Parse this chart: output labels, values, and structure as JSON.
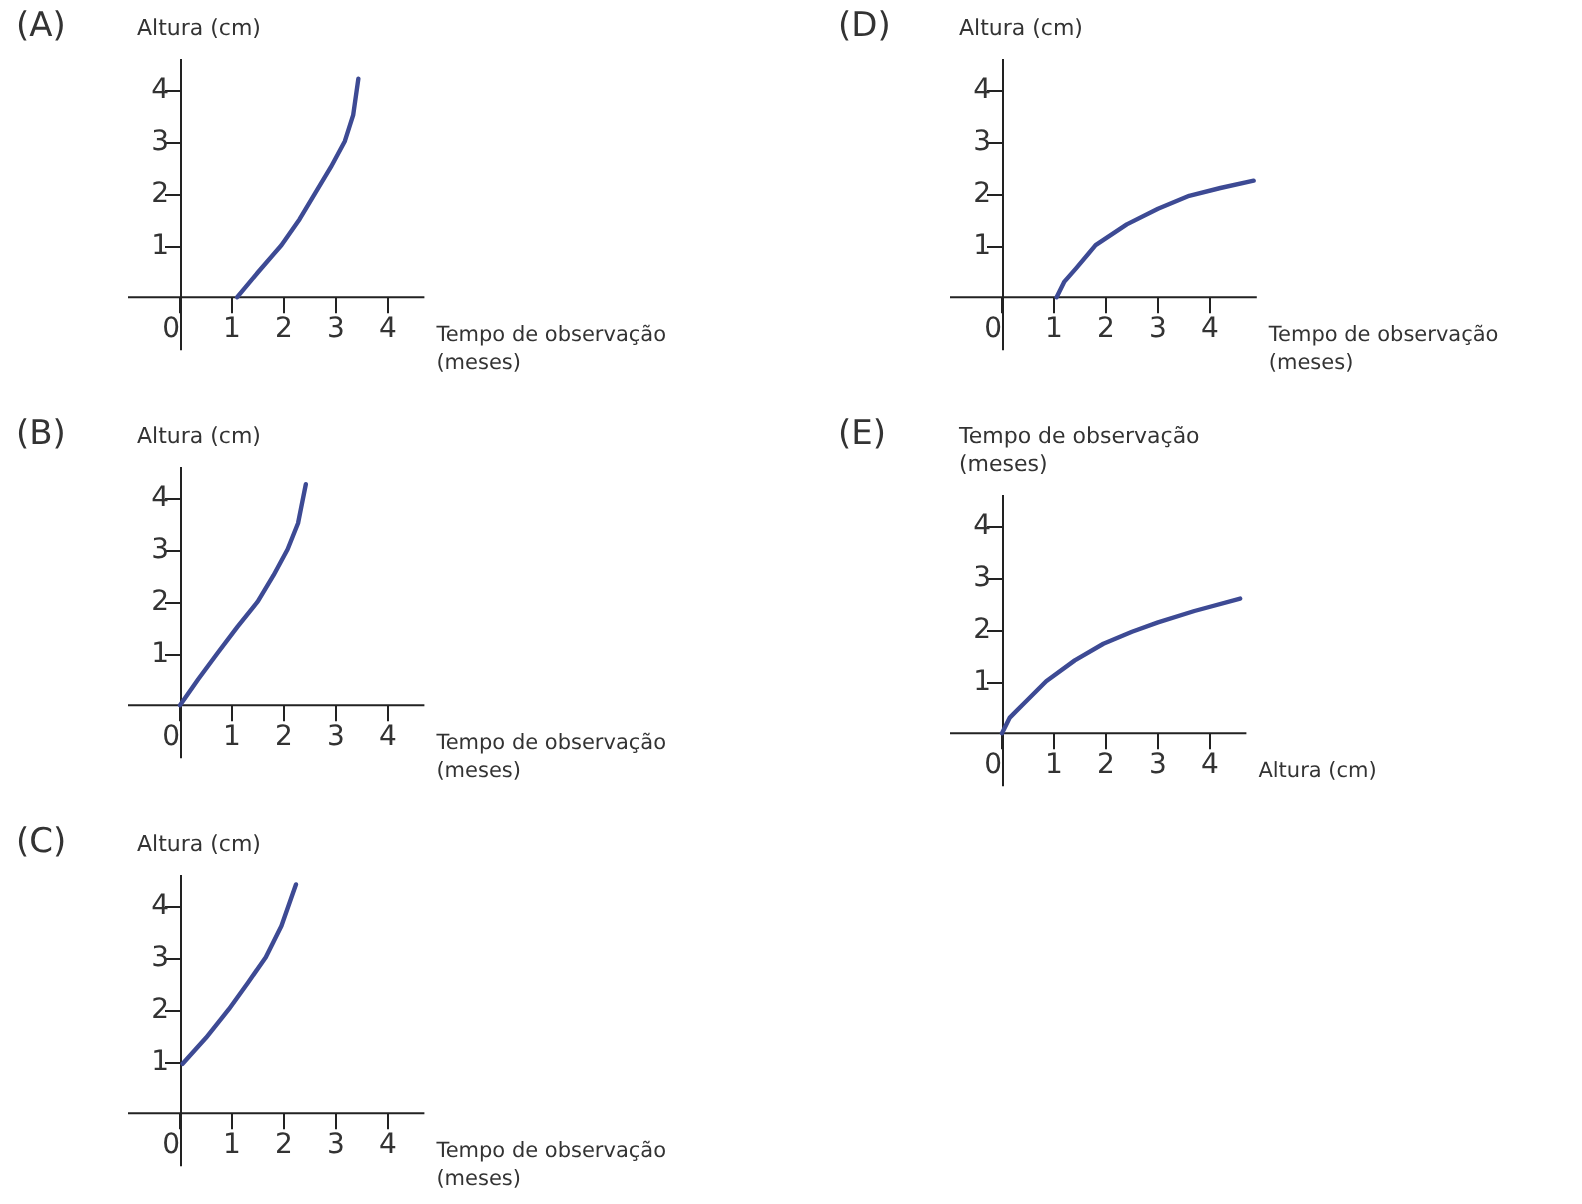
{
  "chart_data": [
    {
      "type": "line",
      "title": "(A)",
      "xlabel": "Tempo de observação (meses)",
      "ylabel": "Altura (cm)",
      "xlim": [
        -1,
        4.7
      ],
      "ylim": [
        -1,
        4.6
      ],
      "xticks": [
        0,
        1,
        2,
        3,
        4
      ],
      "yticks": [
        1,
        2,
        3,
        4
      ],
      "x": [
        1.1,
        1.5,
        1.95,
        2.3,
        2.6,
        2.9,
        3.17,
        3.33,
        3.43
      ],
      "series": [
        {
          "color": "#3d4a94",
          "values": [
            0,
            0.48,
            1,
            1.5,
            2,
            2.5,
            3,
            3.5,
            4.2
          ]
        }
      ]
    },
    {
      "type": "line",
      "title": "(B)",
      "xlabel": "Tempo de observação (meses)",
      "ylabel": "Altura (cm)",
      "xlim": [
        -1,
        4.7
      ],
      "ylim": [
        -1,
        4.6
      ],
      "xticks": [
        0,
        1,
        2,
        3,
        4
      ],
      "yticks": [
        1,
        2,
        3,
        4
      ],
      "x": [
        0,
        0.35,
        0.72,
        1.1,
        1.5,
        1.8,
        2.07,
        2.27,
        2.42
      ],
      "series": [
        {
          "color": "#3d4a94",
          "values": [
            0,
            0.5,
            1,
            1.5,
            2,
            2.5,
            3,
            3.5,
            4.25
          ]
        }
      ]
    },
    {
      "type": "line",
      "title": "(C)",
      "xlabel": "Tempo de observação (meses)",
      "ylabel": "Altura (cm)",
      "xlim": [
        -1,
        4.7
      ],
      "ylim": [
        -1,
        4.6
      ],
      "xticks": [
        0,
        1,
        2,
        3,
        4
      ],
      "yticks": [
        1,
        2,
        3,
        4
      ],
      "x": [
        0.05,
        0.5,
        0.94,
        1.3,
        1.65,
        1.95,
        2.23
      ],
      "series": [
        {
          "color": "#3d4a94",
          "values": [
            0.95,
            1.45,
            2,
            2.5,
            3,
            3.6,
            4.4
          ]
        }
      ]
    },
    {
      "type": "line",
      "title": "(D)",
      "xlabel": "Tempo de observação (meses)",
      "ylabel": "Altura (cm)",
      "xlim": [
        -1,
        4.9
      ],
      "ylim": [
        -1,
        4.6
      ],
      "xticks": [
        0,
        1,
        2,
        3,
        4
      ],
      "yticks": [
        1,
        2,
        3,
        4
      ],
      "x": [
        1.05,
        1.2,
        1.42,
        1.8,
        2.4,
        3,
        3.6,
        4.2,
        4.84
      ],
      "series": [
        {
          "color": "#3d4a94",
          "values": [
            0,
            0.3,
            0.55,
            1,
            1.4,
            1.7,
            1.95,
            2.1,
            2.24
          ]
        }
      ]
    },
    {
      "type": "line",
      "title": "(E)",
      "xlabel": "Altura (cm)",
      "ylabel": "Tempo de observação (meses)",
      "xlim": [
        -1,
        4.7
      ],
      "ylim": [
        -1,
        4.6
      ],
      "xticks": [
        0,
        1,
        2,
        3,
        4
      ],
      "yticks": [
        1,
        2,
        3,
        4
      ],
      "x": [
        0,
        0.15,
        0.45,
        0.85,
        1.4,
        1.95,
        2.5,
        3,
        3.7,
        4.58
      ],
      "series": [
        {
          "color": "#3d4a94",
          "values": [
            0,
            0.3,
            0.6,
            1,
            1.4,
            1.72,
            1.95,
            2.13,
            2.35,
            2.59
          ]
        }
      ]
    }
  ]
}
